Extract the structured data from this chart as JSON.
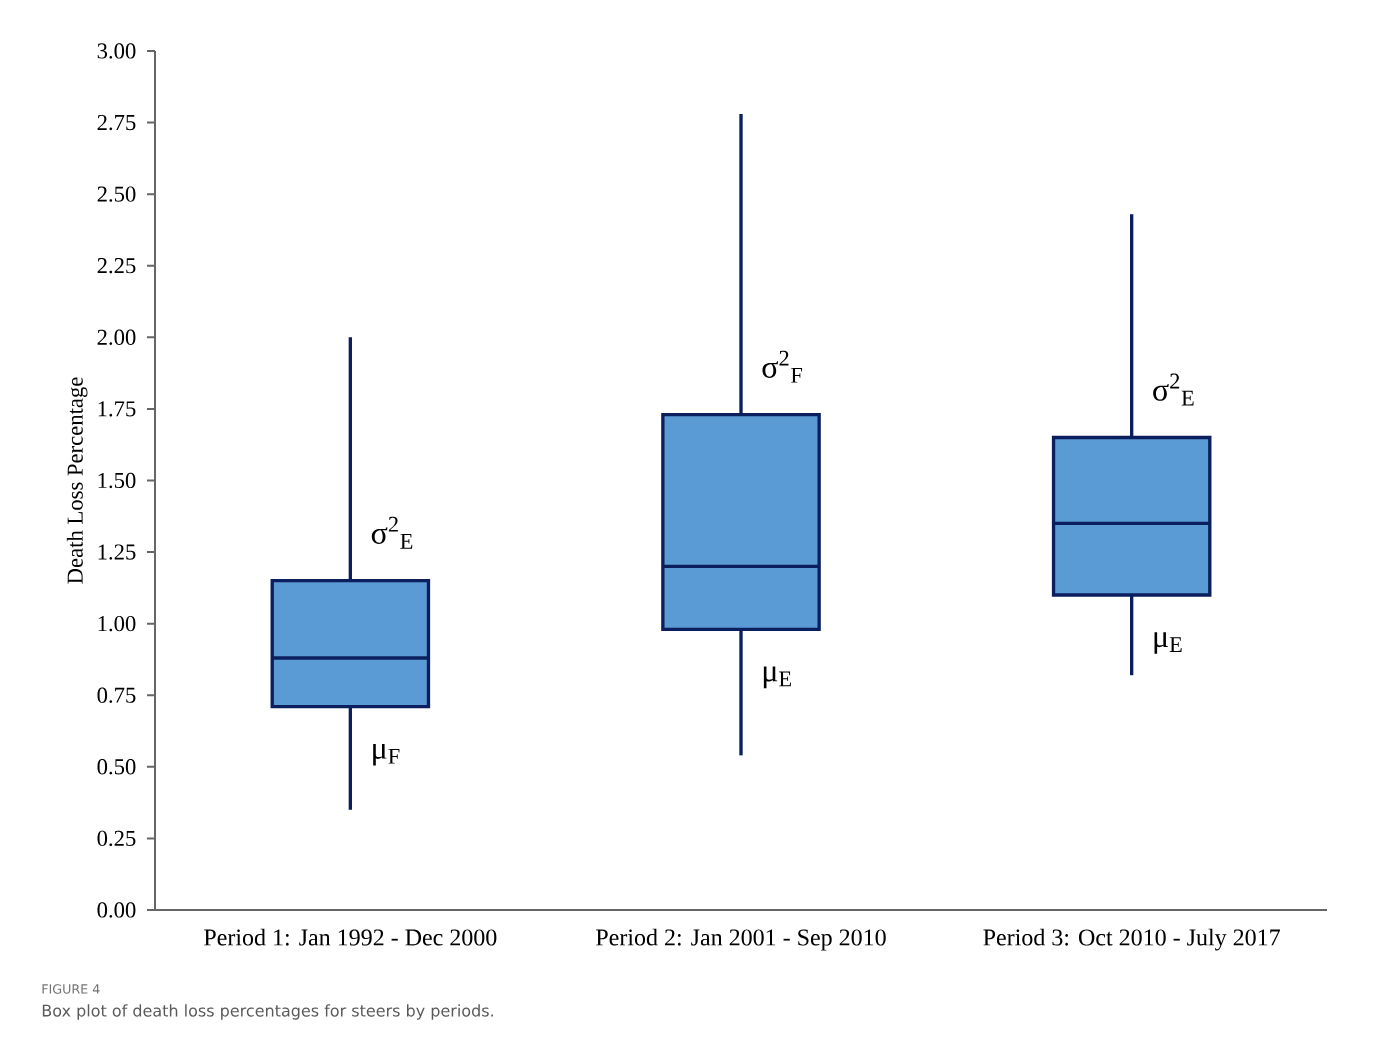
{
  "chart_data": {
    "type": "box",
    "ylabel": "Death Loss Percentage",
    "categories": [
      "Period 1: Jan 1992 - Dec 2000",
      "Period 2: Jan 2001 - Sep 2010",
      "Period 3: Oct 2010 - July 2017"
    ],
    "series": [
      {
        "color": "#5b9bd5",
        "boxes": [
          {
            "low": 0.35,
            "q1": 0.71,
            "median": 0.88,
            "q3": 1.15,
            "high": 2.0
          },
          {
            "low": 0.54,
            "q1": 0.98,
            "median": 1.2,
            "q3": 1.73,
            "high": 2.78
          },
          {
            "low": 0.82,
            "q1": 1.1,
            "median": 1.35,
            "q3": 1.65,
            "high": 2.43
          }
        ]
      }
    ],
    "ylim": [
      0,
      3
    ],
    "yticks": [
      {
        "value": 0,
        "label": "0.00"
      },
      {
        "value": 0.25,
        "label": "0.25"
      },
      {
        "value": 0.5,
        "label": "0.50"
      },
      {
        "value": 0.75,
        "label": "0.75"
      },
      {
        "value": 1,
        "label": "1.00"
      },
      {
        "value": 1.25,
        "label": "1.25"
      },
      {
        "value": 1.5,
        "label": "1.50"
      },
      {
        "value": 1.75,
        "label": "1.75"
      },
      {
        "value": 2,
        "label": "2.00"
      },
      {
        "value": 2.25,
        "label": "2.25"
      },
      {
        "value": 2.5,
        "label": "2.50"
      },
      {
        "value": 2.75,
        "label": "2.75"
      },
      {
        "value": 3,
        "label": "3.00"
      }
    ],
    "annotations": [
      "σ$^{2}$$_{E}$",
      "μ$_{F}$",
      "σ$^{2}$$_{F}$",
      "μ$_{E}$",
      "σ$^{2}$$_{E}$",
      "μ$_{E}$",
      "FIGURE 4",
      "Box plot of death loss percentages for steers by periods."
    ]
  }
}
